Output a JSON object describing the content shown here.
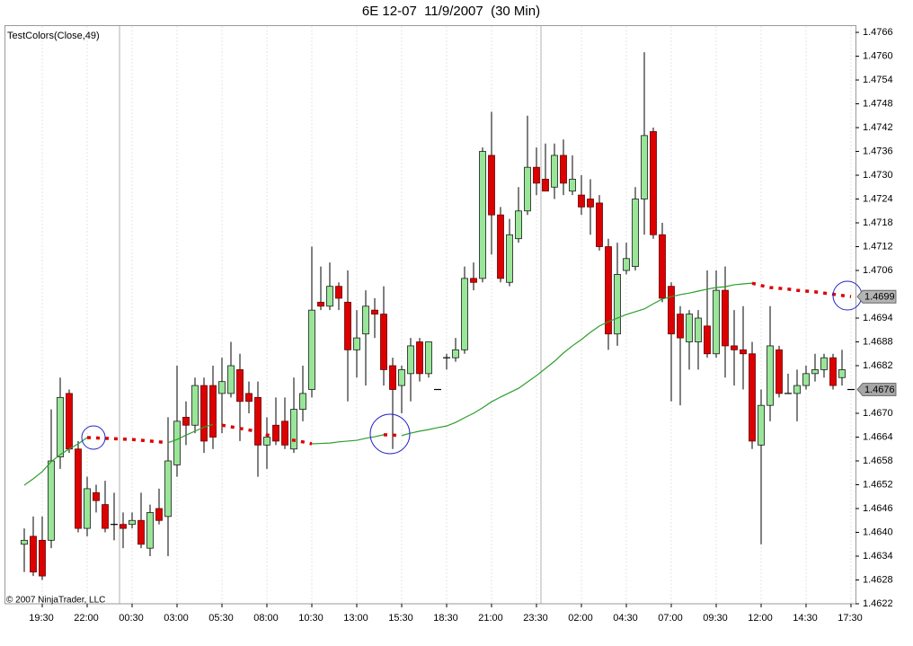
{
  "chart_data": {
    "type": "candlestick",
    "title": "6E 12-07  11/9/2007  (30 Min)",
    "indicator": "TestColors(Close,49)",
    "copyright": "© 2007 NinjaTrader, LLC",
    "categories": [
      null,
      null,
      "19:30",
      null,
      null,
      null,
      null,
      "22:00",
      null,
      null,
      null,
      null,
      "00:30",
      null,
      null,
      null,
      null,
      "03:00",
      null,
      null,
      null,
      null,
      "05:30",
      null,
      null,
      null,
      null,
      "08:00",
      null,
      null,
      null,
      null,
      "10:30",
      null,
      null,
      null,
      null,
      "13:00",
      null,
      null,
      null,
      null,
      "15:30",
      null,
      null,
      null,
      null,
      "18:30",
      null,
      null,
      null,
      null,
      "21:00",
      null,
      null,
      null,
      null,
      "23:30",
      null,
      null,
      null,
      null,
      "02:00",
      null,
      null,
      null,
      null,
      "04:30",
      null,
      null,
      null,
      null,
      "07:00",
      null,
      null,
      null,
      null,
      "09:30",
      null,
      null,
      null,
      null,
      "12:00",
      null,
      null,
      null,
      null,
      "14:30",
      null,
      null,
      null,
      null,
      "17:30"
    ],
    "open": [
      1.4637,
      1.4639,
      1.4638,
      1.4638,
      1.4659,
      1.4675,
      1.4661,
      1.4641,
      1.465,
      1.4647,
      1.4642,
      1.4642,
      1.4642,
      1.4643,
      1.4636,
      1.4646,
      1.4644,
      1.4657,
      1.4669,
      1.4667,
      1.4677,
      1.4677,
      1.4675,
      1.4675,
      1.4681,
      1.4675,
      1.4674,
      1.4662,
      1.4667,
      1.4668,
      1.4661,
      1.4671,
      1.4676,
      1.4698,
      1.4697,
      1.4702,
      1.4698,
      1.4686,
      1.469,
      1.4696,
      1.4695,
      1.4682,
      1.4677,
      1.468,
      1.4688,
      1.468,
      1.4676,
      1.4684,
      1.4684,
      1.4686,
      1.4704,
      1.4704,
      1.4735,
      1.472,
      1.4703,
      1.4714,
      1.4721,
      1.4732,
      1.4729,
      1.4727,
      1.4735,
      1.4726,
      1.4725,
      1.4724,
      1.4723,
      1.4712,
      1.469,
      1.4706,
      1.4707,
      1.4724,
      1.4741,
      1.4715,
      1.4702,
      1.4695,
      1.4688,
      1.4688,
      1.4692,
      1.4685,
      1.4701,
      1.4687,
      1.4686,
      1.4685,
      1.4662,
      1.4672,
      1.4686,
      1.4675,
      1.4675,
      1.4677,
      1.468,
      1.4681,
      1.4684,
      1.4679,
      1.4676
    ],
    "high": [
      1.4641,
      1.4644,
      1.4644,
      1.4671,
      1.4679,
      1.4676,
      1.4663,
      1.4654,
      1.4652,
      1.4653,
      1.465,
      1.4645,
      1.4645,
      1.465,
      1.4647,
      1.4651,
      1.4669,
      1.4682,
      1.4673,
      1.4679,
      1.4679,
      1.4682,
      1.4684,
      1.4688,
      1.4685,
      1.4678,
      1.4678,
      1.4669,
      1.4674,
      1.4674,
      1.4679,
      1.4682,
      1.4712,
      1.4707,
      1.4708,
      1.4703,
      1.4706,
      1.4696,
      1.4701,
      1.4699,
      1.4702,
      1.4684,
      1.4682,
      1.4689,
      1.4689,
      1.4688,
      1.4676,
      1.4685,
      1.4689,
      1.4707,
      1.4708,
      1.4737,
      1.4746,
      1.4722,
      1.4719,
      1.4727,
      1.4745,
      1.4737,
      1.4738,
      1.4738,
      1.4739,
      1.4735,
      1.473,
      1.4729,
      1.4725,
      1.4714,
      1.4713,
      1.4713,
      1.4727,
      1.4761,
      1.4742,
      1.4718,
      1.4703,
      1.4697,
      1.4696,
      1.4696,
      1.4706,
      1.4706,
      1.4707,
      1.4696,
      1.4697,
      1.4688,
      1.4676,
      1.4697,
      1.4687,
      1.468,
      1.4681,
      1.4682,
      1.4685,
      1.4685,
      1.4685,
      1.4686,
      1.4676
    ],
    "low": [
      1.463,
      1.4629,
      1.4628,
      1.4636,
      1.4656,
      1.466,
      1.464,
      1.4639,
      1.4645,
      1.464,
      1.4638,
      1.4636,
      1.4641,
      1.4636,
      1.4634,
      1.4642,
      1.4634,
      1.4654,
      1.4662,
      1.4665,
      1.466,
      1.4661,
      1.4665,
      1.4674,
      1.4663,
      1.467,
      1.4654,
      1.4656,
      1.4662,
      1.4661,
      1.466,
      1.4668,
      1.4674,
      1.4696,
      1.4696,
      1.4696,
      1.4673,
      1.4679,
      1.4677,
      1.4689,
      1.4677,
      1.4661,
      1.467,
      1.4673,
      1.4678,
      1.4679,
      1.4676,
      1.4681,
      1.4683,
      1.4685,
      1.4701,
      1.4703,
      1.471,
      1.4703,
      1.4702,
      1.4713,
      1.472,
      1.4725,
      1.4726,
      1.4724,
      1.4725,
      1.4725,
      1.472,
      1.4715,
      1.4711,
      1.4686,
      1.4687,
      1.4705,
      1.4706,
      1.4715,
      1.4714,
      1.4698,
      1.4673,
      1.4672,
      1.4681,
      1.4681,
      1.4684,
      1.4684,
      1.4679,
      1.4677,
      1.4676,
      1.4661,
      1.4637,
      1.4668,
      1.4674,
      1.4675,
      1.4668,
      1.4676,
      1.4678,
      1.4679,
      1.4676,
      1.4677,
      1.4676
    ],
    "close": [
      1.4638,
      1.463,
      1.4629,
      1.4658,
      1.4674,
      1.4661,
      1.4641,
      1.4651,
      1.4648,
      1.4641,
      1.4642,
      1.4641,
      1.4643,
      1.4637,
      1.4645,
      1.4643,
      1.4658,
      1.4668,
      1.4667,
      1.4677,
      1.4663,
      1.4664,
      1.4678,
      1.4682,
      1.4673,
      1.4673,
      1.4662,
      1.4664,
      1.4663,
      1.4662,
      1.4671,
      1.4675,
      1.4696,
      1.4697,
      1.4702,
      1.4699,
      1.4686,
      1.4689,
      1.4697,
      1.4695,
      1.4681,
      1.4676,
      1.4681,
      1.4687,
      1.468,
      1.4688,
      1.4676,
      1.4684,
      1.4686,
      1.4704,
      1.4703,
      1.4736,
      1.472,
      1.4704,
      1.4715,
      1.4721,
      1.4732,
      1.4728,
      1.4726,
      1.4735,
      1.4728,
      1.4729,
      1.4722,
      1.4722,
      1.4712,
      1.469,
      1.4705,
      1.4709,
      1.4724,
      1.474,
      1.4715,
      1.4699,
      1.469,
      1.4689,
      1.4695,
      1.4694,
      1.4685,
      1.4701,
      1.4687,
      1.4686,
      1.4685,
      1.4663,
      1.4672,
      1.4687,
      1.4675,
      1.4675,
      1.4677,
      1.468,
      1.4681,
      1.4684,
      1.4677,
      1.4681,
      1.4676
    ],
    "up_color": "#99e699",
    "down_color": "#dd0000",
    "moving_average": {
      "values": [
        1.46519,
        1.46535,
        1.46553,
        1.46578,
        1.46596,
        1.4661,
        1.46623,
        1.46639,
        1.46638,
        1.46637,
        1.46636,
        1.46635,
        1.46634,
        1.46632,
        1.4663,
        1.46628,
        1.46626,
        1.46634,
        1.46645,
        1.46655,
        1.46665,
        1.46672,
        1.4667,
        1.46666,
        1.46662,
        1.46658,
        1.46654,
        1.46646,
        1.46639,
        1.46637,
        1.46632,
        1.46628,
        1.46623,
        1.46624,
        1.46625,
        1.46628,
        1.4663,
        1.46632,
        1.46637,
        1.46641,
        1.46646,
        1.46645,
        1.46644,
        1.4665,
        1.46655,
        1.46659,
        1.46664,
        1.46668,
        1.46677,
        1.46689,
        1.467,
        1.46714,
        1.46729,
        1.46741,
        1.46752,
        1.46763,
        1.46779,
        1.46795,
        1.46813,
        1.46831,
        1.46852,
        1.4687,
        1.46886,
        1.46904,
        1.4692,
        1.46931,
        1.4694,
        1.46949,
        1.46956,
        1.46963,
        1.46976,
        1.46988,
        1.46994,
        1.46999,
        1.47003,
        1.47008,
        1.47013,
        1.47017,
        1.47019,
        1.47024,
        1.47026,
        1.47028,
        1.47022,
        1.47017,
        1.47015,
        1.47013,
        1.4701,
        1.47008,
        1.47006,
        1.47003,
        1.47,
        1.46997,
        1.46994
      ],
      "up_color": "#2e9e2e",
      "down_color": "#dd0000",
      "last_label": "1.4699"
    },
    "ylim": [
      1.4622,
      1.4768
    ],
    "yticks": [
      1.4766,
      {
        "value": 1.476,
        "label": "1.4760"
      },
      1.4754,
      1.4748,
      1.4742,
      1.4736,
      {
        "value": 1.473,
        "label": "1.4730"
      },
      1.4724,
      1.4718,
      1.4712,
      1.4706,
      1.4694,
      1.4688,
      1.4682,
      {
        "value": 1.467,
        "label": "1.4670"
      },
      1.4664,
      1.4658,
      1.4652,
      1.4646,
      {
        "value": 1.464,
        "label": "1.4640"
      },
      1.4634,
      1.4628,
      1.4622
    ],
    "grid": "x"
  }
}
